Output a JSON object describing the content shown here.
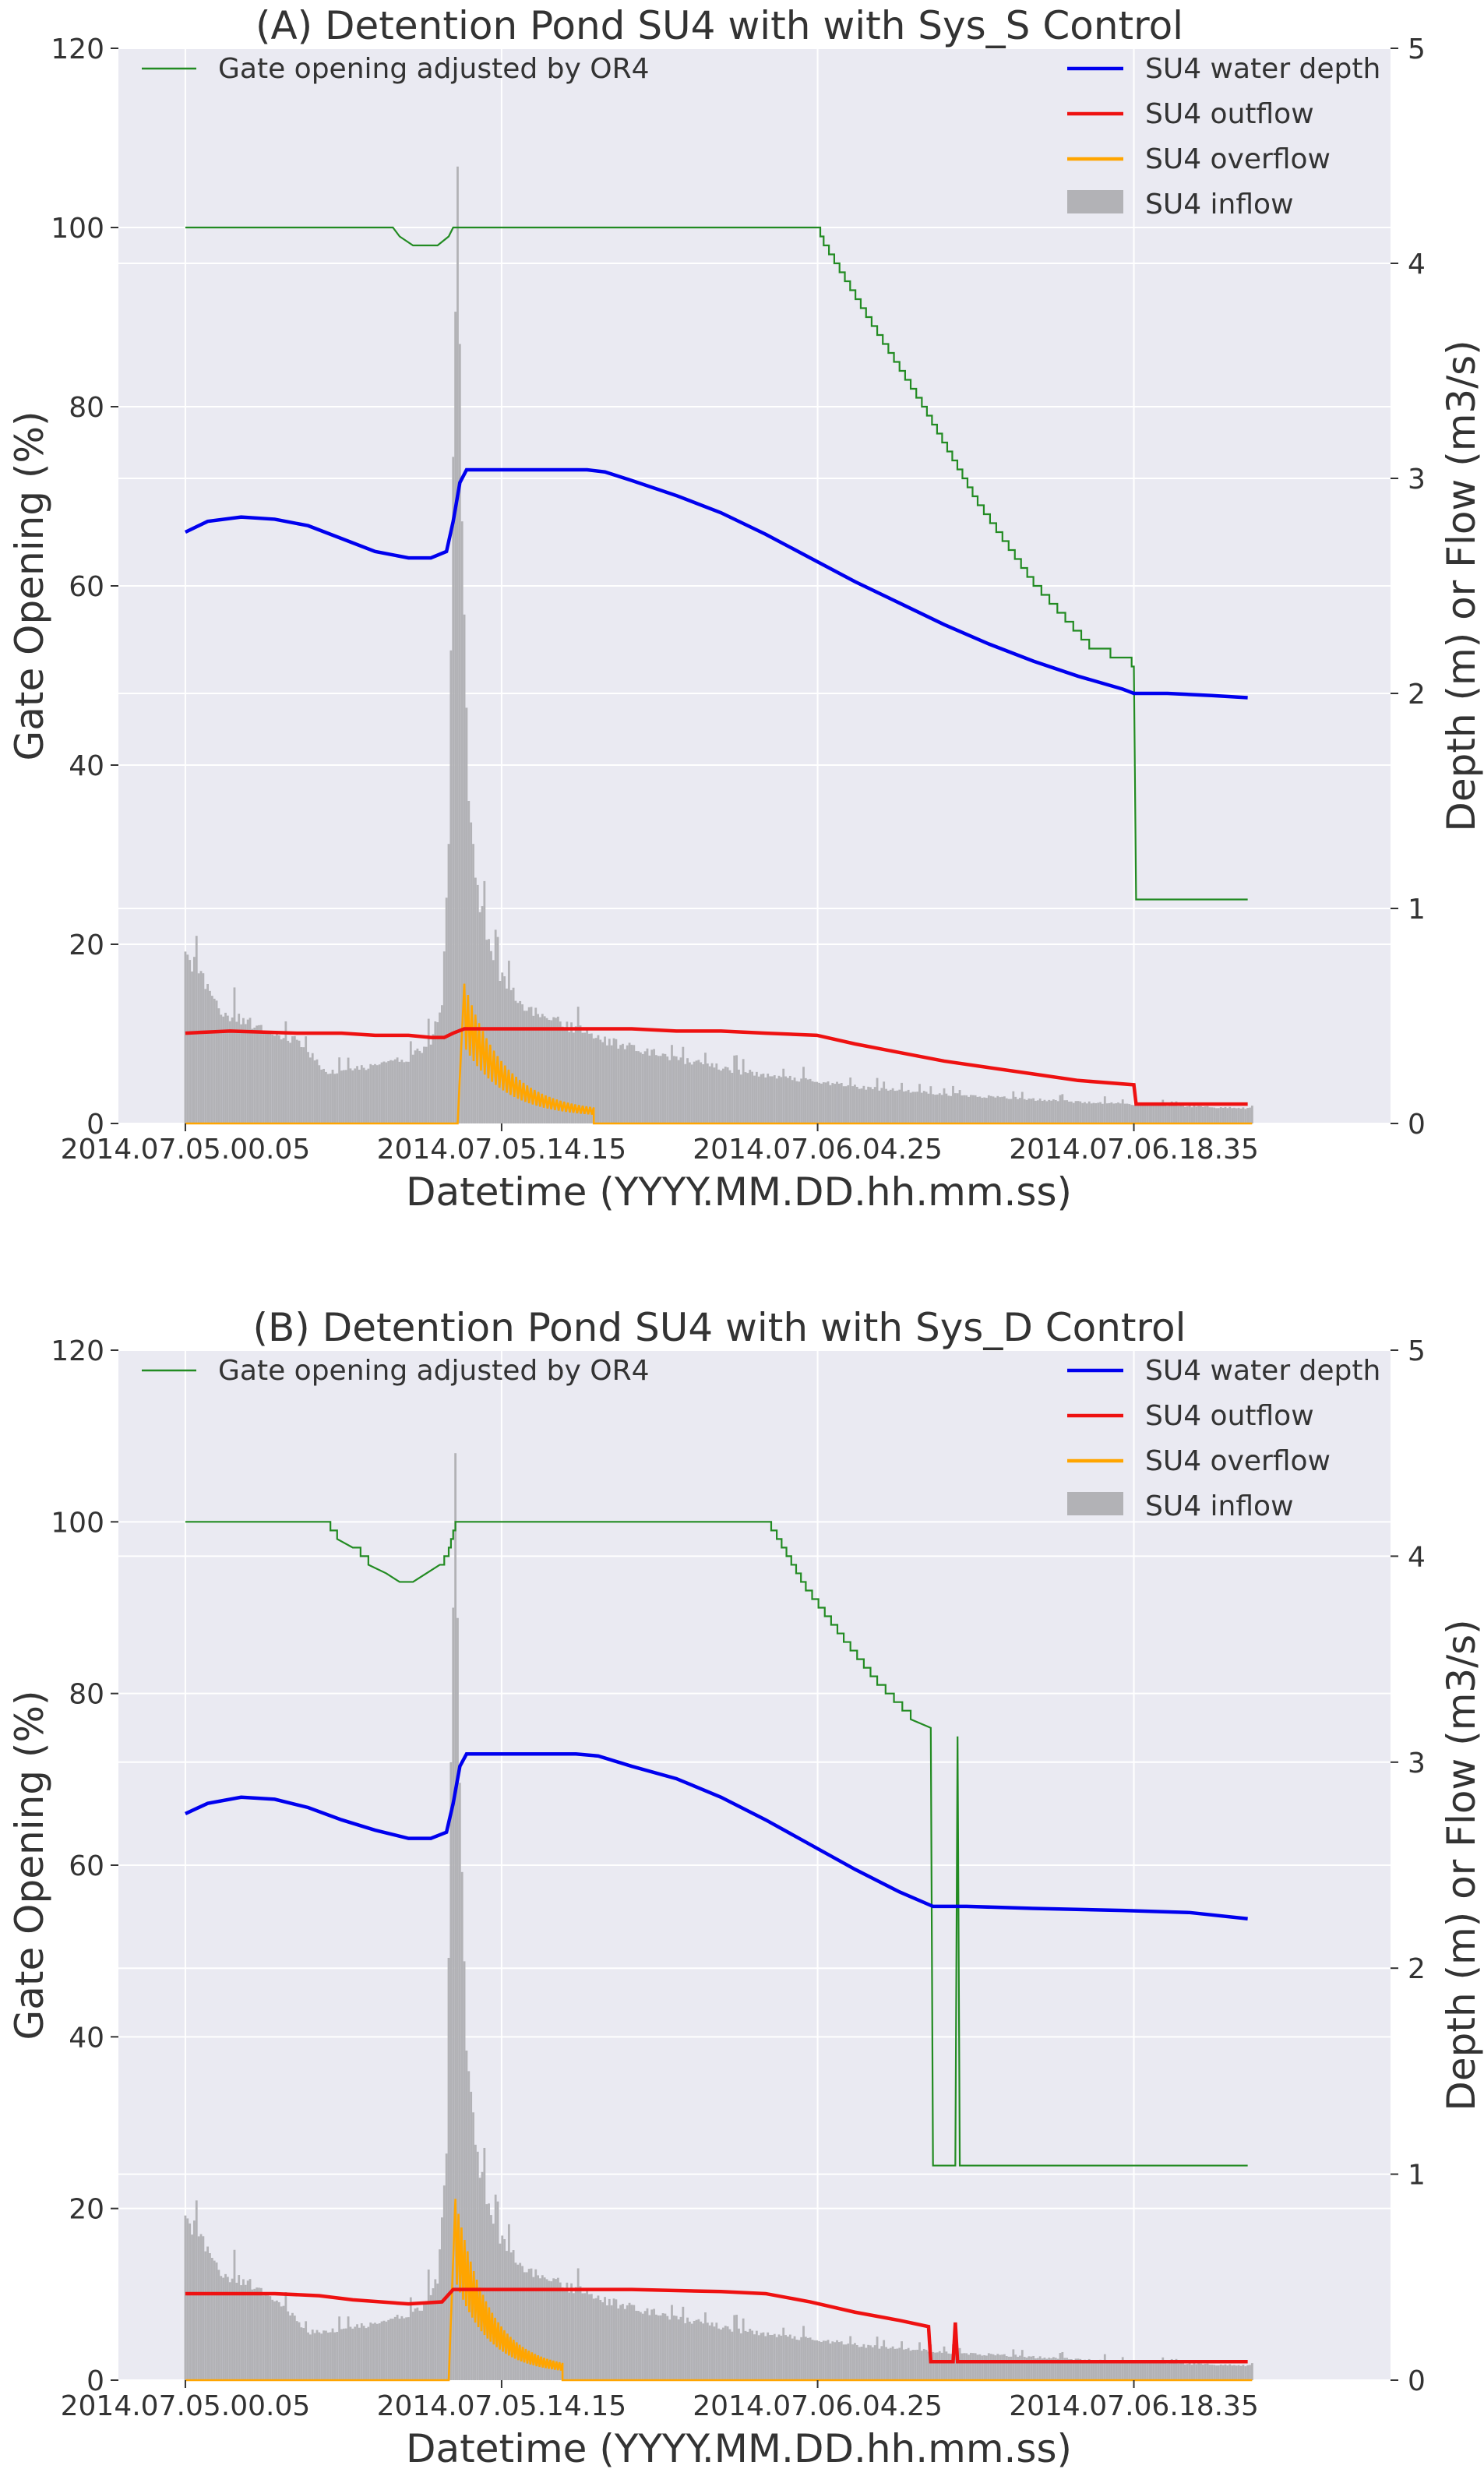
{
  "figure": {
    "background": "#ffffff",
    "plot_bg": "#eaeaf2",
    "grid": "#ffffff"
  },
  "colors": {
    "gate": "#228b22",
    "depth": "#0000ee",
    "outflow": "#ee1111",
    "overflow": "#ffa500",
    "inflow": "#b2b2b6"
  },
  "chart_data": [
    {
      "id": "A",
      "type": "line+bar",
      "title": "(A) Detention Pond SU4 with with Sys_S Control",
      "xlabel": "Datetime (YYYY.MM.DD.hh.mm.ss)",
      "ylabel_left": "Gate Opening (%)",
      "ylabel_right": "Depth (m) or Flow (m3/s)",
      "xlim_hours": [
        -3,
        54
      ],
      "ylim_left": [
        0,
        120
      ],
      "ylim_right": [
        0,
        5
      ],
      "xtick_hours": [
        0,
        14.17,
        28.33,
        42.5
      ],
      "xtick_labels": [
        "2014.07.05.00.05",
        "2014.07.05.14.15",
        "2014.07.06.04.25",
        "2014.07.06.18.35"
      ],
      "ytick_left": [
        0,
        20,
        40,
        60,
        80,
        100,
        120
      ],
      "ytick_right": [
        0,
        1,
        2,
        3,
        4,
        5
      ],
      "legend_left": [
        "Gate opening adjusted by OR4"
      ],
      "legend_right": [
        "SU4 water depth",
        "SU4 outflow",
        "SU4 overflow",
        "SU4 inflow"
      ],
      "gate_opening": {
        "name": "Gate opening adjusted by OR4",
        "x": [
          0,
          9.3,
          9.6,
          10.2,
          11.3,
          11.8,
          12.0,
          28.3,
          28.6,
          30.5,
          33.0,
          35.5,
          38.0,
          40.5,
          42.4,
          42.5,
          42.6,
          47.6
        ],
        "y": [
          100,
          100,
          99,
          98,
          98,
          99,
          100,
          100,
          98,
          90,
          80,
          69,
          60,
          53,
          51,
          51,
          25,
          25
        ]
      },
      "water_depth": {
        "name": "SU4 water depth",
        "x": [
          0,
          1,
          2.5,
          4,
          5.5,
          7,
          8.5,
          10,
          11,
          11.7,
          12.0,
          12.3,
          12.6,
          13,
          14,
          16,
          18,
          18.8,
          20,
          22,
          24,
          26,
          28,
          30,
          32,
          34,
          36,
          38,
          40,
          42,
          42.5,
          44,
          46,
          47.6
        ],
        "y": [
          2.75,
          2.8,
          2.82,
          2.81,
          2.78,
          2.72,
          2.66,
          2.63,
          2.63,
          2.66,
          2.8,
          2.98,
          3.04,
          3.04,
          3.04,
          3.04,
          3.04,
          3.03,
          2.99,
          2.92,
          2.84,
          2.74,
          2.63,
          2.52,
          2.42,
          2.32,
          2.23,
          2.15,
          2.08,
          2.02,
          2.0,
          2.0,
          1.99,
          1.98
        ]
      },
      "outflow": {
        "name": "SU4 outflow",
        "x": [
          0,
          2,
          5,
          7,
          8.5,
          10,
          11,
          11.6,
          12.0,
          12.5,
          14,
          16,
          18,
          20,
          22,
          24,
          26,
          28.3,
          30,
          32,
          34,
          36,
          38,
          40,
          42.5,
          42.6,
          43,
          47.6
        ],
        "y": [
          0.42,
          0.43,
          0.42,
          0.42,
          0.41,
          0.41,
          0.4,
          0.4,
          0.42,
          0.44,
          0.44,
          0.44,
          0.44,
          0.44,
          0.43,
          0.43,
          0.42,
          0.41,
          0.37,
          0.33,
          0.29,
          0.26,
          0.23,
          0.2,
          0.18,
          0.09,
          0.09,
          0.09
        ]
      },
      "overflow": {
        "name": "SU4 overflow",
        "start_hour": 12.2,
        "peak_hour": 12.5,
        "peak": 0.65,
        "end_hour": 18.3,
        "end_value": 0.05,
        "baseline": 0
      },
      "inflow": {
        "name": "SU4 inflow",
        "x": [
          0,
          0.5,
          1.5,
          3,
          5,
          5.8,
          6.3,
          8,
          10,
          11,
          11.5,
          11.8,
          12.0,
          12.2,
          12.4,
          12.7,
          13.2,
          14,
          15,
          17,
          19,
          22,
          25,
          28,
          31,
          35,
          40,
          45,
          47.8
        ],
        "y": [
          0.78,
          0.72,
          0.52,
          0.46,
          0.38,
          0.3,
          0.24,
          0.26,
          0.3,
          0.38,
          0.55,
          1.3,
          3.1,
          4.45,
          2.8,
          1.5,
          1.0,
          0.72,
          0.55,
          0.46,
          0.38,
          0.3,
          0.24,
          0.2,
          0.16,
          0.13,
          0.1,
          0.08,
          0.07
        ]
      }
    },
    {
      "id": "B",
      "type": "line+bar",
      "title": "(B) Detention Pond SU4 with with Sys_D Control",
      "xlabel": "Datetime (YYYY.MM.DD.hh.mm.ss)",
      "ylabel_left": "Gate Opening (%)",
      "ylabel_right": "Depth (m) or Flow (m3/s)",
      "xlim_hours": [
        -3,
        54
      ],
      "ylim_left": [
        0,
        120
      ],
      "ylim_right": [
        0,
        5
      ],
      "xtick_hours": [
        0,
        14.17,
        28.33,
        42.5
      ],
      "xtick_labels": [
        "2014.07.05.00.05",
        "2014.07.05.14.15",
        "2014.07.06.04.25",
        "2014.07.06.18.35"
      ],
      "ytick_left": [
        0,
        20,
        40,
        60,
        80,
        100,
        120
      ],
      "ytick_right": [
        0,
        1,
        2,
        3,
        4,
        5
      ],
      "legend_left": [
        "Gate opening adjusted by OR4"
      ],
      "legend_right": [
        "SU4 water depth",
        "SU4 outflow",
        "SU4 overflow",
        "SU4 inflow"
      ],
      "gate_opening": {
        "name": "Gate opening adjusted by OR4",
        "x": [
          0,
          6.2,
          6.8,
          7.5,
          8.2,
          9.0,
          9.6,
          10.2,
          10.8,
          11.4,
          11.8,
          12.1,
          26.0,
          26.5,
          27.8,
          29.5,
          31.0,
          32.5,
          33.4,
          33.5,
          33.6,
          34.5,
          34.6,
          34.7,
          34.8,
          47.6
        ],
        "y": [
          100,
          100,
          98,
          97,
          95,
          94,
          93,
          93,
          94,
          95,
          97,
          100,
          100,
          98,
          92,
          86,
          81,
          77,
          76,
          25,
          25,
          25,
          75,
          25,
          25,
          25
        ]
      },
      "water_depth": {
        "name": "SU4 water depth",
        "x": [
          0,
          1,
          2.5,
          4,
          5.5,
          7,
          8.5,
          10,
          11,
          11.7,
          12.0,
          12.3,
          12.6,
          13,
          14,
          16,
          17.5,
          18.5,
          20,
          22,
          24,
          26,
          28,
          30,
          32,
          33.5,
          35,
          38,
          42,
          45,
          47.6
        ],
        "y": [
          2.75,
          2.8,
          2.83,
          2.82,
          2.78,
          2.72,
          2.67,
          2.63,
          2.63,
          2.66,
          2.8,
          2.98,
          3.04,
          3.04,
          3.04,
          3.04,
          3.04,
          3.03,
          2.98,
          2.92,
          2.83,
          2.72,
          2.6,
          2.48,
          2.37,
          2.3,
          2.3,
          2.29,
          2.28,
          2.27,
          2.24
        ]
      },
      "outflow": {
        "name": "SU4 outflow",
        "x": [
          0,
          4,
          6,
          7.5,
          10,
          11.5,
          12.0,
          12.5,
          16,
          20,
          24,
          26,
          28,
          30,
          32,
          33.3,
          33.4,
          34.4,
          34.5,
          34.6,
          34.7,
          35,
          47.6
        ],
        "y": [
          0.42,
          0.42,
          0.41,
          0.39,
          0.37,
          0.38,
          0.44,
          0.44,
          0.44,
          0.44,
          0.43,
          0.42,
          0.38,
          0.33,
          0.29,
          0.26,
          0.09,
          0.09,
          0.28,
          0.09,
          0.09,
          0.09,
          0.09
        ]
      },
      "overflow": {
        "name": "SU4 overflow",
        "start_hour": 11.8,
        "peak_hour": 12.1,
        "peak": 0.88,
        "end_hour": 16.9,
        "end_value": 0.05,
        "baseline": 0
      },
      "inflow": {
        "name": "SU4 inflow",
        "x": [
          0,
          0.5,
          1.5,
          3,
          4.5,
          5.0,
          5.5,
          7,
          9,
          10.5,
          11.3,
          11.7,
          11.9,
          12.1,
          12.3,
          12.6,
          13.2,
          14,
          15,
          17,
          19,
          22,
          25,
          28,
          31,
          35,
          40,
          45,
          47.8
        ],
        "y": [
          0.78,
          0.72,
          0.52,
          0.46,
          0.36,
          0.28,
          0.23,
          0.25,
          0.28,
          0.34,
          0.48,
          1.1,
          3.0,
          4.5,
          2.9,
          1.6,
          1.0,
          0.72,
          0.55,
          0.46,
          0.38,
          0.3,
          0.24,
          0.2,
          0.16,
          0.13,
          0.1,
          0.08,
          0.07
        ]
      }
    }
  ]
}
